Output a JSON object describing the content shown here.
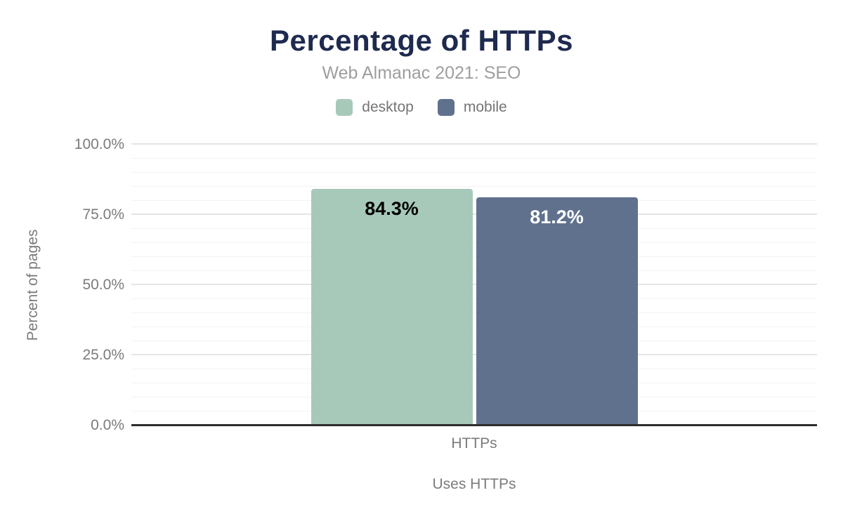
{
  "chart_data": {
    "type": "bar",
    "title": "Percentage of HTTPs",
    "subtitle": "Web Almanac 2021: SEO",
    "categories": [
      "HTTPs"
    ],
    "series": [
      {
        "name": "desktop",
        "values": [
          84.3
        ],
        "value_labels": [
          "84.3%"
        ],
        "color": "#a7c9ba",
        "value_label_color": "#000000"
      },
      {
        "name": "mobile",
        "values": [
          81.2
        ],
        "value_labels": [
          "81.2%"
        ],
        "color": "#5f718d",
        "value_label_color": "#ffffff"
      }
    ],
    "xlabel": "Uses HTTPs",
    "ylabel": "Percent of pages",
    "ylim": [
      0,
      100
    ],
    "y_ticks": [
      {
        "value": 0,
        "label": "0.0%"
      },
      {
        "value": 25,
        "label": "25.0%"
      },
      {
        "value": 50,
        "label": "50.0%"
      },
      {
        "value": 75,
        "label": "75.0%"
      },
      {
        "value": 100,
        "label": "100.0%"
      }
    ],
    "minor_grid_step": 5,
    "grid": true,
    "legend_position": "top",
    "colors": {
      "title": "#1e2a4e",
      "subtitle": "#9e9e9e",
      "axis_text": "#7b7b7b",
      "axis_line": "#2d2d2d",
      "gridline_major": "#e5e5e5",
      "gridline_minor": "#f3f3f3"
    }
  }
}
